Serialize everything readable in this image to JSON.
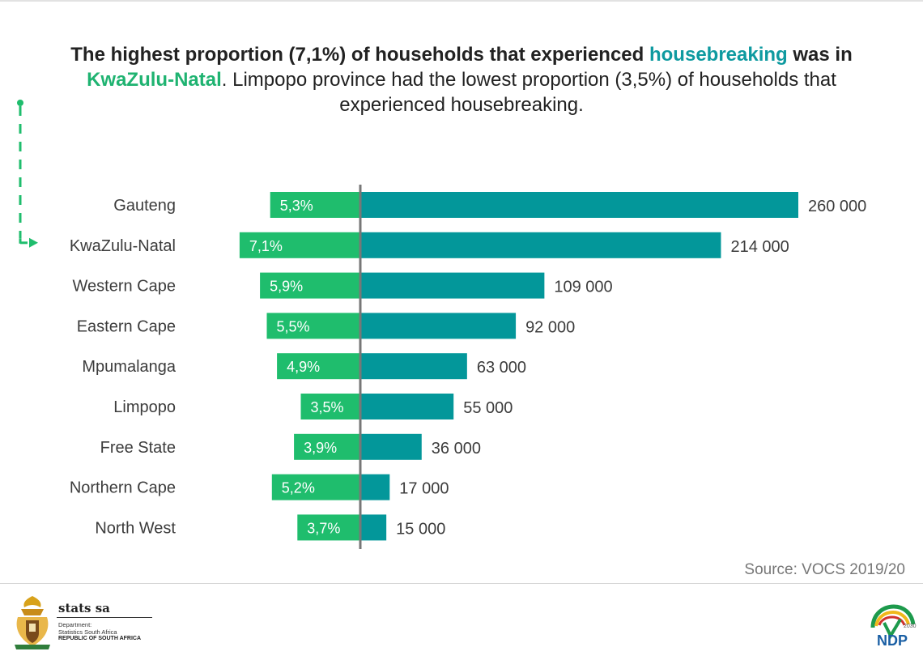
{
  "headline": {
    "part1": "The highest proportion (7,1%) of households that experienced ",
    "highlight": "housebreaking",
    "part2": " was in",
    "region": "KwaZulu-Natal",
    "part3": ". Limpopo province had the lowest proportion (3,5%) of households that",
    "part4": "experienced housebreaking."
  },
  "source": "Source: VOCS 2019/20",
  "footer": {
    "org_name": "stats sa",
    "dept_line1": "Department:",
    "dept_line2": "Statistics South Africa",
    "country": "REPUBLIC OF SOUTH AFRICA",
    "ndp_text": "NDP",
    "ndp_year": "2030"
  },
  "colors": {
    "teal": "#03979a",
    "green": "#1fbd6d",
    "axis": "#777777",
    "text": "#444444"
  },
  "chart_data": {
    "type": "bar",
    "orientation": "horizontal",
    "categories": [
      "Gauteng",
      "KwaZulu-Natal",
      "Western Cape",
      "Eastern Cape",
      "Mpumalanga",
      "Limpopo",
      "Free State",
      "Northern Cape",
      "North West"
    ],
    "series": [
      {
        "values": [
          5.3,
          7.1,
          5.9,
          5.5,
          4.9,
          3.5,
          3.9,
          5.2,
          3.7
        ],
        "labels": [
          "5,3%",
          "7,1%",
          "5,9%",
          "5,5%",
          "4,9%",
          "3,5%",
          "3,9%",
          "5,2%",
          "3,7%"
        ],
        "direction": "left",
        "color": "#1fbd6d"
      },
      {
        "values": [
          260000,
          214000,
          109000,
          92000,
          63000,
          55000,
          36000,
          17000,
          15000
        ],
        "labels": [
          "260 000",
          "214 000",
          "109 000",
          "92 000",
          "63 000",
          "55 000",
          "36 000",
          "17 000",
          "15 000"
        ],
        "direction": "right",
        "color": "#03979a"
      }
    ],
    "highlighted_category": "KwaZulu-Natal",
    "grid": false,
    "legend": "none"
  }
}
